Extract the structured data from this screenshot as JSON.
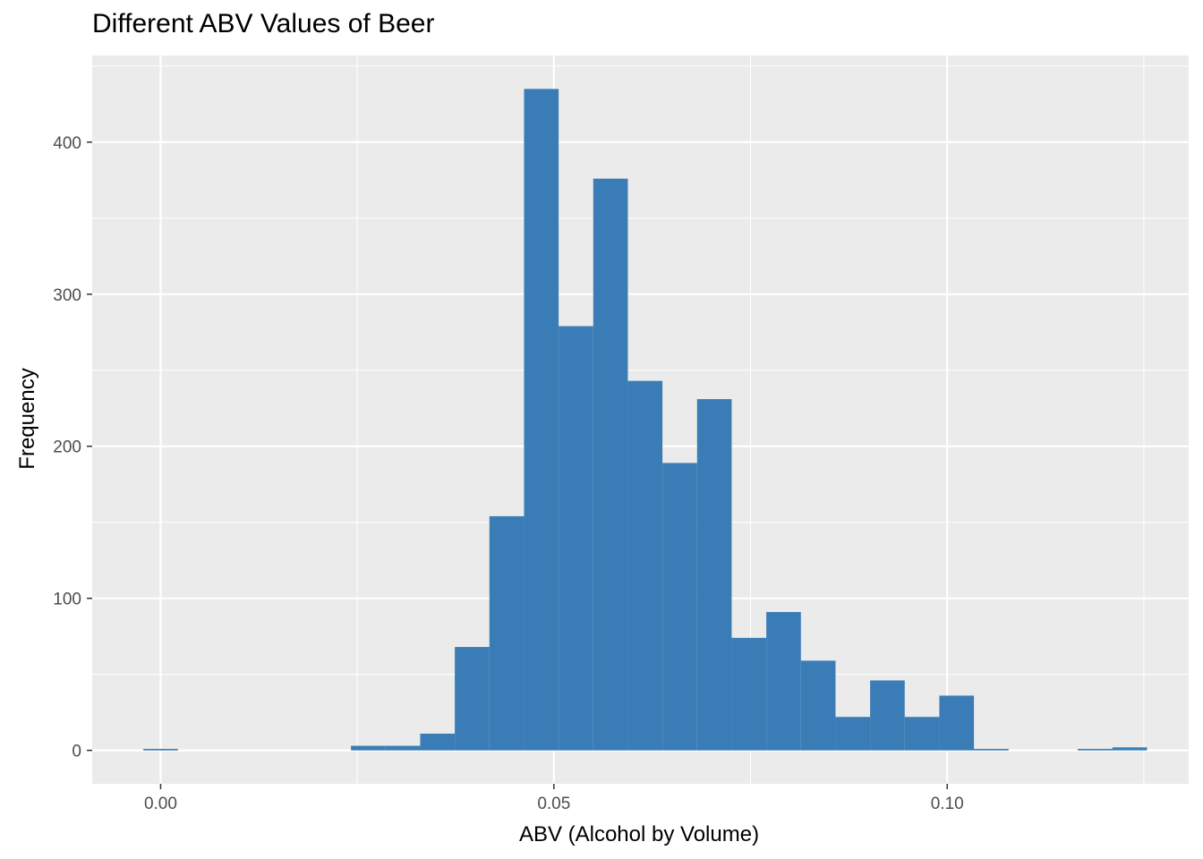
{
  "chart_data": {
    "type": "bar",
    "title": "Different ABV Values of Beer",
    "xlabel": "ABV (Alcohol by Volume)",
    "ylabel": "Frequency",
    "xlim": [
      -0.0087,
      0.1307
    ],
    "ylim": [
      -22,
      457
    ],
    "x_ticks": [
      0.0,
      0.05,
      0.1
    ],
    "x_tick_labels": [
      "0.00",
      "0.05",
      "0.10"
    ],
    "y_ticks": [
      0,
      100,
      200,
      300,
      400
    ],
    "y_tick_labels": [
      "0",
      "100",
      "200",
      "300",
      "400"
    ],
    "grid": true,
    "panel_color": "#ebebeb",
    "grid_color": "#ffffff",
    "bar_color": "#3a7db6",
    "bin_width": 0.0044,
    "series": [
      {
        "bin_start": [
          -0.0022,
          0.0242,
          0.0286,
          0.033,
          0.0374,
          0.0418,
          0.0462,
          0.0506,
          0.055,
          0.0594,
          0.0638,
          0.0682,
          0.0726,
          0.077,
          0.0814,
          0.0858,
          0.0902,
          0.0946,
          0.099,
          0.1034,
          0.1166,
          0.121
        ],
        "bin_end": [
          0.0022,
          0.0286,
          0.033,
          0.0374,
          0.0418,
          0.0462,
          0.0506,
          0.055,
          0.0594,
          0.0638,
          0.0682,
          0.0726,
          0.077,
          0.0814,
          0.0858,
          0.0902,
          0.0946,
          0.099,
          0.1034,
          0.1078,
          0.121,
          0.1254
        ],
        "values": [
          1,
          3,
          3,
          11,
          68,
          154,
          435,
          279,
          376,
          243,
          189,
          231,
          74,
          91,
          59,
          22,
          46,
          22,
          36,
          1,
          1,
          2
        ]
      }
    ]
  }
}
